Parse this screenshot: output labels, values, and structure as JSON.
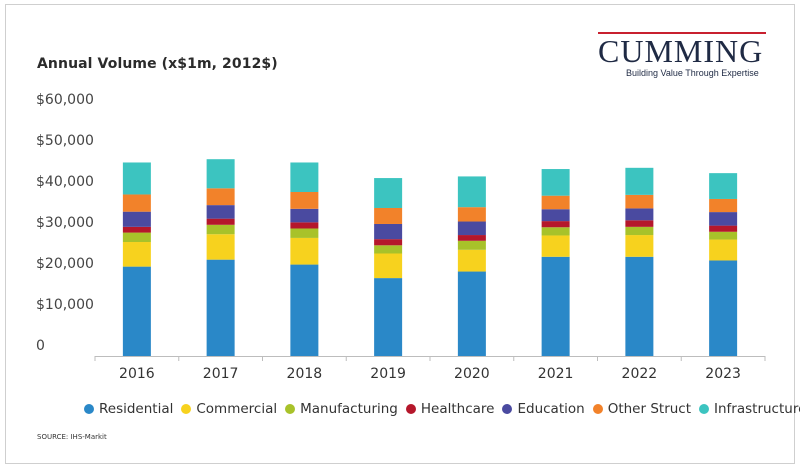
{
  "title": "Annual Volume (x$1m, 2012$)",
  "logo": {
    "name": "CUMMING",
    "tagline": "Building Value Through Expertise"
  },
  "source": "SOURCE: IHS-Markit",
  "colors": {
    "Residential": "#2a88c8",
    "Commercial": "#f7d21e",
    "Manufacturing": "#a8c22a",
    "Healthcare": "#b5172b",
    "Education": "#4a4aa0",
    "Other Struct": "#f2822a",
    "Infrastructure": "#3cc4c0"
  },
  "chart_data": {
    "type": "bar",
    "stacked": true,
    "categories": [
      "2016",
      "2017",
      "2018",
      "2019",
      "2020",
      "2021",
      "2022",
      "2023"
    ],
    "y_tick_labels": [
      "0",
      "$10,000",
      "$20,000",
      "$30,000",
      "$40,000",
      "$50,000",
      "$60,000"
    ],
    "ylim": [
      0,
      60000
    ],
    "grid": false,
    "legend_position": "bottom",
    "series": [
      {
        "name": "Residential",
        "values": [
          21800,
          23500,
          22300,
          19000,
          20600,
          24200,
          24200,
          23300
        ]
      },
      {
        "name": "Commercial",
        "values": [
          6000,
          6200,
          6500,
          6000,
          5300,
          5200,
          5300,
          5100
        ]
      },
      {
        "name": "Manufacturing",
        "values": [
          2300,
          2300,
          2300,
          2000,
          2200,
          2000,
          2000,
          1900
        ]
      },
      {
        "name": "Healthcare",
        "values": [
          1400,
          1500,
          1500,
          1500,
          1400,
          1500,
          1600,
          1500
        ]
      },
      {
        "name": "Education",
        "values": [
          3700,
          3300,
          3300,
          3700,
          3300,
          2900,
          2900,
          3300
        ]
      },
      {
        "name": "Other Struct",
        "values": [
          4200,
          4100,
          4100,
          3900,
          3500,
          3300,
          3300,
          3200
        ]
      },
      {
        "name": "Infrastructure",
        "values": [
          7800,
          7100,
          7200,
          7300,
          7500,
          6500,
          6600,
          6300
        ]
      }
    ]
  }
}
